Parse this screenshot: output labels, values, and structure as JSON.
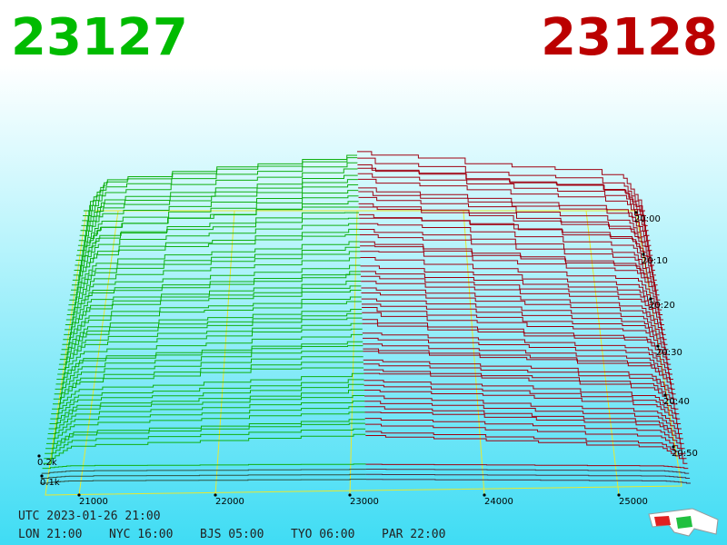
{
  "header": {
    "bid": "23127",
    "ask": "23128"
  },
  "price_axis": {
    "labels": [
      "21000",
      "22000",
      "23000",
      "24000",
      "25000"
    ]
  },
  "time_axis": {
    "labels": [
      "20:00",
      "20:10",
      "20:20",
      "20:30",
      "20:40",
      "20:50"
    ]
  },
  "depth_axis": {
    "labels": [
      "0.2k",
      "0.1k"
    ]
  },
  "footer": {
    "utc": "UTC 2023-01-26 21:00",
    "clocks": [
      "LON 21:00",
      "NYC 16:00",
      "BJS 05:00",
      "TYO 06:00",
      "PAR 22:00"
    ]
  }
}
